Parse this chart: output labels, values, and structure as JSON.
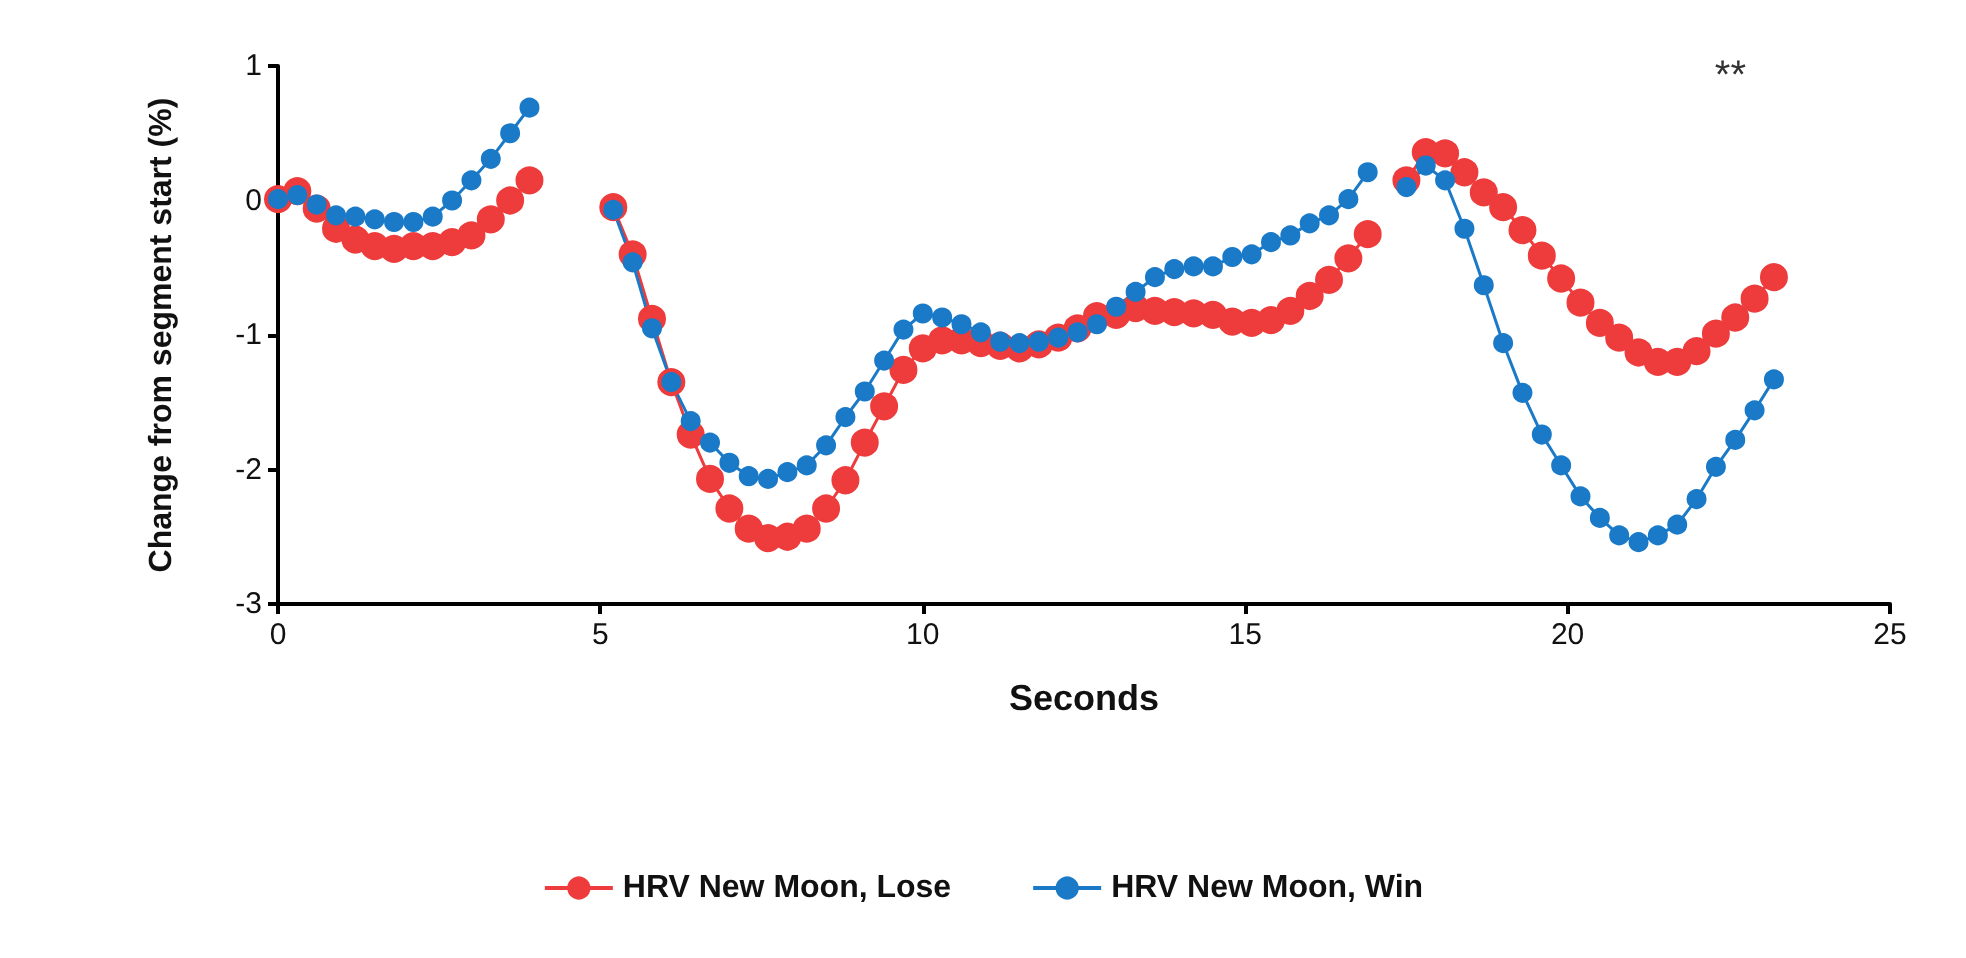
{
  "chart_data": {
    "type": "line",
    "xlabel": "Seconds",
    "ylabel": "Change from segment start (%)",
    "x": [
      0,
      0.3,
      0.6,
      0.9,
      1.2,
      1.5,
      1.8,
      2.1,
      2.4,
      2.7,
      3.0,
      3.3,
      3.6,
      3.9,
      4.5,
      5.2,
      5.5,
      5.8,
      6.1,
      6.4,
      6.7,
      7.0,
      7.3,
      7.6,
      7.9,
      8.2,
      8.5,
      8.8,
      9.1,
      9.4,
      9.7,
      10.0,
      10.3,
      10.6,
      10.9,
      11.2,
      11.5,
      11.8,
      12.1,
      12.4,
      12.7,
      13.0,
      13.3,
      13.6,
      13.9,
      14.2,
      14.5,
      14.8,
      15.1,
      15.4,
      15.7,
      16.0,
      16.3,
      16.6,
      16.9,
      17.2,
      17.5,
      17.8,
      18.1,
      18.4,
      18.7,
      19.0,
      19.3,
      19.6,
      19.9,
      20.2,
      20.5,
      20.8,
      21.1,
      21.4,
      21.7,
      22.0,
      22.3,
      22.6,
      22.9,
      23.2
    ],
    "series": [
      {
        "name": "HRV New Moon, Lose",
        "color": "#ee3b3b",
        "values": [
          0.01,
          0.07,
          -0.06,
          -0.21,
          -0.29,
          -0.34,
          -0.36,
          -0.34,
          -0.34,
          -0.31,
          -0.26,
          -0.14,
          0,
          0.15,
          null,
          -0.05,
          -0.4,
          -0.88,
          -1.35,
          -1.74,
          -2.07,
          -2.29,
          -2.44,
          -2.51,
          -2.5,
          -2.44,
          -2.29,
          -2.08,
          -1.8,
          -1.53,
          -1.26,
          -1.1,
          -1.04,
          -1.04,
          -1.06,
          -1.08,
          -1.1,
          -1.07,
          -1.02,
          -0.95,
          -0.86,
          -0.85,
          -0.8,
          -0.82,
          -0.83,
          -0.84,
          -0.85,
          -0.9,
          -0.91,
          -0.89,
          -0.82,
          -0.71,
          -0.59,
          -0.43,
          -0.25,
          null,
          0.15,
          0.36,
          0.35,
          0.21,
          0.06,
          -0.05,
          -0.22,
          -0.41,
          -0.58,
          -0.76,
          -0.91,
          -1.02,
          -1.13,
          -1.2,
          -1.2,
          -1.12,
          -0.99,
          -0.87,
          -0.73,
          -0.57
        ]
      },
      {
        "name": "HRV New Moon, Win",
        "color": "#1a7ac8",
        "values": [
          0.01,
          0.04,
          -0.03,
          -0.11,
          -0.12,
          -0.14,
          -0.16,
          -0.16,
          -0.12,
          0,
          0.15,
          0.31,
          0.5,
          0.69,
          null,
          -0.07,
          -0.46,
          -0.95,
          -1.35,
          -1.64,
          -1.8,
          -1.95,
          -2.05,
          -2.07,
          -2.02,
          -1.97,
          -1.82,
          -1.61,
          -1.42,
          -1.19,
          -0.96,
          -0.84,
          -0.87,
          -0.92,
          -0.98,
          -1.05,
          -1.06,
          -1.05,
          -1.02,
          -0.98,
          -0.92,
          -0.79,
          -0.68,
          -0.57,
          -0.51,
          -0.49,
          -0.49,
          -0.42,
          -0.4,
          -0.31,
          -0.26,
          -0.17,
          -0.11,
          0.01,
          0.21,
          null,
          0.1,
          0.26,
          0.15,
          -0.21,
          -0.63,
          -1.06,
          -1.43,
          -1.74,
          -1.97,
          -2.2,
          -2.36,
          -2.49,
          -2.54,
          -2.49,
          -2.41,
          -2.22,
          -1.98,
          -1.78,
          -1.56,
          -1.33
        ]
      }
    ],
    "xlim": [
      0,
      25
    ],
    "xticks": [
      0,
      5,
      10,
      15,
      20,
      25
    ],
    "ylim": [
      -3,
      1
    ],
    "yticks": [
      -3,
      -2,
      -1,
      0,
      1
    ],
    "annotations": [
      "**"
    ],
    "grid": false,
    "legend": "bottom",
    "marker": "circle",
    "line_style": "solid"
  }
}
